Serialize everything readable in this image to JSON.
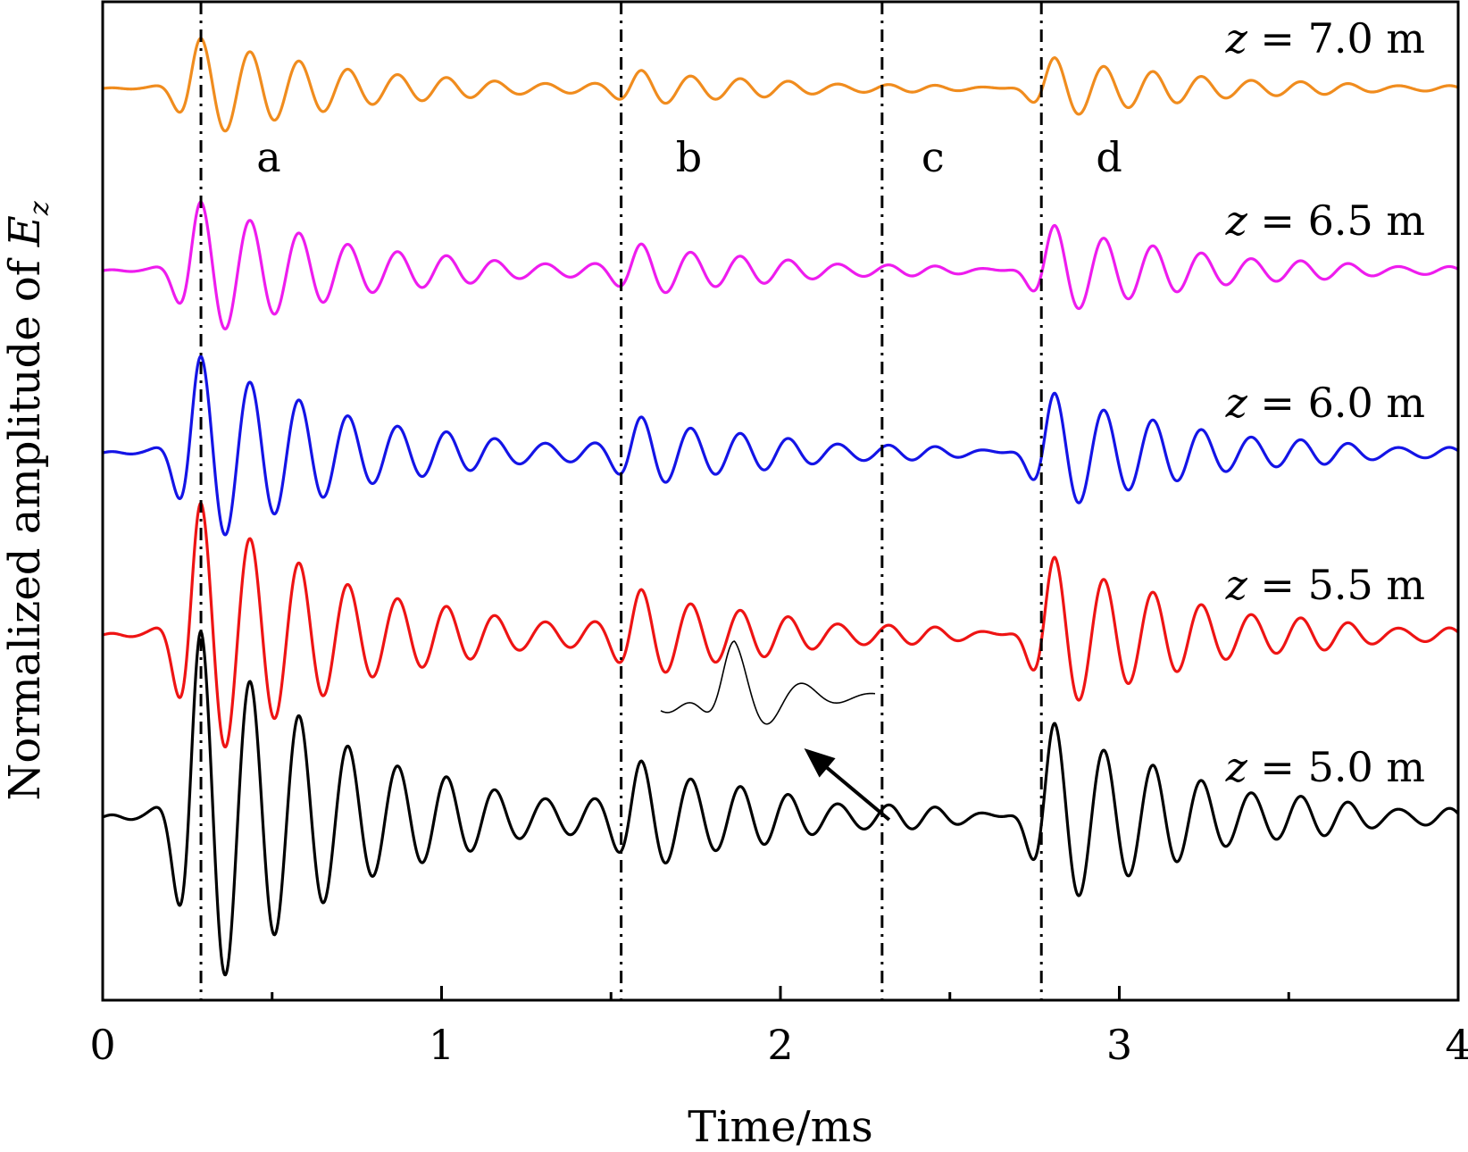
{
  "chart_data": {
    "type": "line",
    "xlabel": "Time/ms",
    "ylabel": {
      "text": "Normalized amplitude of ",
      "variable": "E",
      "subscript": "z"
    },
    "xlim": [
      0,
      4
    ],
    "xticks": [
      0,
      1,
      2,
      3,
      4
    ],
    "xtick_labels": [
      "0",
      "1",
      "2",
      "3",
      "4"
    ],
    "x_minor_step": 0.5,
    "grid": false,
    "legend": "none",
    "vlines": [
      {
        "x": 0.29,
        "style": "dash-dot"
      },
      {
        "x": 1.53,
        "style": "dash-dot"
      },
      {
        "x": 2.3,
        "style": "dash-dot"
      },
      {
        "x": 2.77,
        "style": "dash-dot"
      }
    ],
    "region_labels": [
      {
        "text": "a",
        "x": 0.49
      },
      {
        "text": "b",
        "x": 1.73
      },
      {
        "text": "c",
        "x": 2.45
      },
      {
        "text": "d",
        "x": 2.97
      }
    ],
    "inset_annotation": {
      "description_shape": "zoomed waveform of reflected pulse",
      "arrow_from_x": 2.3,
      "arrow_to_x": 2.07
    },
    "series": [
      {
        "name": "z = 7.0 m",
        "label_var": "z",
        "label_rest": " = 7.0 m",
        "color": "#f08c1e",
        "baseline": 4,
        "main_scale": 0.27,
        "echo1_scale": 0.08,
        "echo2_scale": 0.17
      },
      {
        "name": "z = 6.5 m",
        "label_var": "z",
        "label_rest": " = 6.5 m",
        "color": "#ee1cee",
        "baseline": 3,
        "main_scale": 0.37,
        "echo1_scale": 0.12,
        "echo2_scale": 0.25
      },
      {
        "name": "z = 6.0 m",
        "label_var": "z",
        "label_rest": " = 6.0 m",
        "color": "#1414e6",
        "baseline": 2,
        "main_scale": 0.52,
        "echo1_scale": 0.16,
        "echo2_scale": 0.33
      },
      {
        "name": "z = 5.5 m",
        "label_var": "z",
        "label_rest": " = 5.5 m",
        "color": "#ee1414",
        "baseline": 1,
        "main_scale": 0.71,
        "echo1_scale": 0.2,
        "echo2_scale": 0.43
      },
      {
        "name": "z = 5.0 m",
        "label_var": "z",
        "label_rest": " = 5.0 m",
        "color": "#000000",
        "baseline": 0,
        "main_scale": 1.0,
        "echo1_scale": 0.24,
        "echo2_scale": 0.52
      }
    ],
    "waveform": {
      "main_center": 0.29,
      "echo1_center": 1.59,
      "echo2_center": 2.81,
      "period": 0.145,
      "decay_rate": 2.2,
      "rise_width": 0.055
    }
  }
}
